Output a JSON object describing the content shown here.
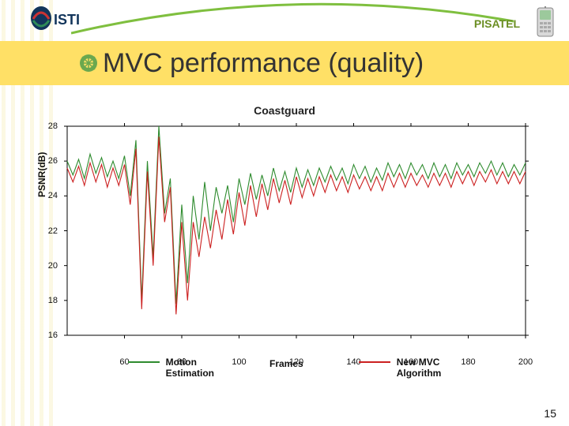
{
  "header": {
    "brand_label": "PISATEL",
    "logo_text": "ISTI"
  },
  "title": "MVC performance (quality)",
  "colors": {
    "title_bar_bg": "#ffe066",
    "title_text": "#333333",
    "brand_text": "#6b8e23",
    "arc": "#7fbf3f",
    "bullet_outer": "#6ba84f",
    "bullet_inner": "#ffe066",
    "chart_border": "#000000",
    "series_me": "#2e8b2e",
    "series_mvc": "#cc2020",
    "background": "#ffffff"
  },
  "chart": {
    "type": "line",
    "title": "Coastguard",
    "title_fontsize": 14,
    "ylabel": "PSNR(dB)",
    "xlabel_caption": "Frames",
    "xlim": [
      40,
      200
    ],
    "ylim": [
      16,
      28
    ],
    "xtick_step": 20,
    "ytick_step": 2,
    "xtick_labels": [
      "60",
      "80",
      "100",
      "120",
      "140",
      "160",
      "180",
      "200"
    ],
    "ytick_labels": [
      "16",
      "18",
      "20",
      "22",
      "24",
      "26",
      "28"
    ],
    "grid": false,
    "background_color": "#ffffff",
    "line_width": 1.1,
    "series": [
      {
        "name": "Motion Estimation",
        "color": "#2e8b2e",
        "x": [
          40,
          42,
          44,
          46,
          48,
          50,
          52,
          54,
          56,
          58,
          60,
          62,
          64,
          66,
          68,
          70,
          72,
          74,
          76,
          78,
          80,
          82,
          84,
          86,
          88,
          90,
          92,
          94,
          96,
          98,
          100,
          102,
          104,
          106,
          108,
          110,
          112,
          114,
          116,
          118,
          120,
          122,
          124,
          126,
          128,
          130,
          132,
          134,
          136,
          138,
          140,
          142,
          144,
          146,
          148,
          150,
          152,
          154,
          156,
          158,
          160,
          162,
          164,
          166,
          168,
          170,
          172,
          174,
          176,
          178,
          180,
          182,
          184,
          186,
          188,
          190,
          192,
          194,
          196,
          198,
          200
        ],
        "y": [
          26.0,
          25.2,
          26.1,
          25.0,
          26.4,
          25.3,
          26.2,
          25.1,
          26.0,
          25.0,
          26.3,
          24.0,
          27.2,
          18.0,
          26.0,
          20.5,
          28.0,
          23.0,
          25.0,
          17.8,
          23.5,
          19.0,
          24.0,
          21.5,
          24.8,
          22.0,
          24.5,
          23.0,
          24.6,
          22.5,
          25.0,
          23.5,
          25.3,
          23.8,
          25.2,
          24.0,
          25.6,
          24.3,
          25.4,
          24.2,
          25.6,
          24.5,
          25.5,
          24.6,
          25.6,
          24.8,
          25.7,
          24.9,
          25.6,
          24.7,
          25.8,
          25.0,
          25.7,
          24.8,
          25.6,
          24.9,
          25.9,
          25.1,
          25.8,
          25.0,
          25.9,
          25.2,
          25.8,
          25.0,
          25.9,
          25.1,
          25.8,
          25.0,
          25.9,
          25.2,
          25.8,
          25.1,
          25.9,
          25.3,
          26.0,
          25.2,
          25.9,
          25.1,
          25.8,
          25.2,
          25.9
        ]
      },
      {
        "name": "New MVC Algorithm",
        "color": "#cc2020",
        "x": [
          40,
          42,
          44,
          46,
          48,
          50,
          52,
          54,
          56,
          58,
          60,
          62,
          64,
          66,
          68,
          70,
          72,
          74,
          76,
          78,
          80,
          82,
          84,
          86,
          88,
          90,
          92,
          94,
          96,
          98,
          100,
          102,
          104,
          106,
          108,
          110,
          112,
          114,
          116,
          118,
          120,
          122,
          124,
          126,
          128,
          130,
          132,
          134,
          136,
          138,
          140,
          142,
          144,
          146,
          148,
          150,
          152,
          154,
          156,
          158,
          160,
          162,
          164,
          166,
          168,
          170,
          172,
          174,
          176,
          178,
          180,
          182,
          184,
          186,
          188,
          190,
          192,
          194,
          196,
          198,
          200
        ],
        "y": [
          25.6,
          24.8,
          25.7,
          24.6,
          25.9,
          24.8,
          25.8,
          24.5,
          25.6,
          24.6,
          25.8,
          23.5,
          26.7,
          17.5,
          25.4,
          20.0,
          27.4,
          22.5,
          24.5,
          17.2,
          22.5,
          18.0,
          22.5,
          20.5,
          22.8,
          21.0,
          23.2,
          21.5,
          23.8,
          21.8,
          24.2,
          22.3,
          24.6,
          22.8,
          24.7,
          23.2,
          25.0,
          23.6,
          24.9,
          23.5,
          25.1,
          23.9,
          25.0,
          24.0,
          25.1,
          24.2,
          25.2,
          24.3,
          25.1,
          24.2,
          25.2,
          24.4,
          25.1,
          24.3,
          25.1,
          24.3,
          25.3,
          24.5,
          25.3,
          24.5,
          25.3,
          24.6,
          25.2,
          24.5,
          25.3,
          24.6,
          25.3,
          24.5,
          25.4,
          24.7,
          25.4,
          24.6,
          25.4,
          24.8,
          25.5,
          24.7,
          25.4,
          24.7,
          25.4,
          24.7,
          25.4
        ]
      }
    ],
    "legend": {
      "items": [
        {
          "label": "Motion\nEstimation",
          "color": "#2e8b2e"
        },
        {
          "label": "New MVC\nAlgorithm",
          "color": "#cc2020"
        }
      ]
    }
  },
  "page_number": "15"
}
